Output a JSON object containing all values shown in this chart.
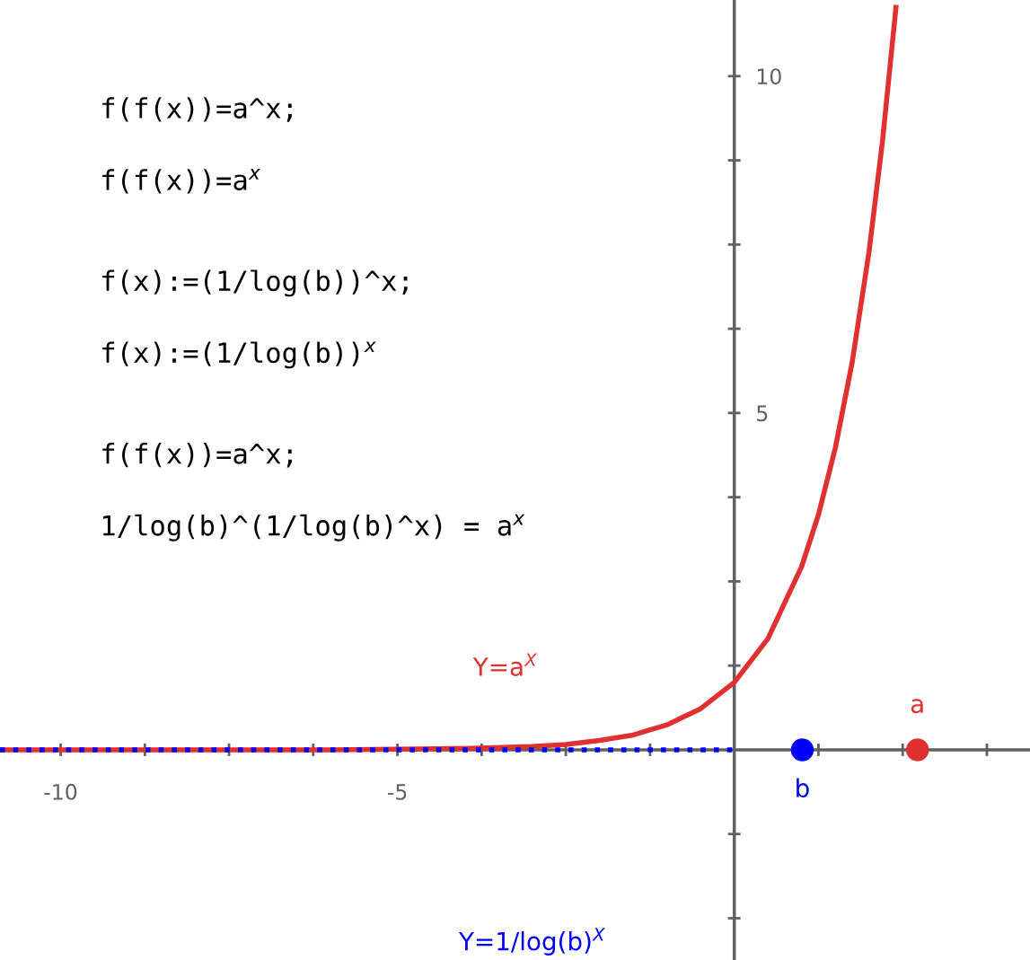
{
  "chart_data": {
    "type": "line",
    "xlim": [
      -10.9,
      4.39
    ],
    "ylim": [
      -3.12,
      11.13
    ],
    "xticks": [
      -10,
      {
        "value": -8.75,
        "label": null
      },
      {
        "value": -7.5,
        "label": null
      },
      {
        "value": -6.25,
        "label": null
      },
      -5,
      {
        "value": -3.75,
        "label": null
      },
      {
        "value": -2.5,
        "label": null
      },
      {
        "value": -1.25,
        "label": null
      },
      {
        "value": 1.25,
        "label": null
      },
      {
        "value": 2.5,
        "label": null
      },
      {
        "value": 3.75,
        "label": null
      }
    ],
    "yticks": [
      {
        "value": -2.5,
        "label": null
      },
      {
        "value": -1.25,
        "label": null
      },
      {
        "value": 1.25,
        "label": null
      },
      {
        "value": 2.5,
        "label": null
      },
      {
        "value": 3.75,
        "label": null
      },
      5,
      {
        "value": 6.25,
        "label": null
      },
      {
        "value": 7.5,
        "label": null
      },
      {
        "value": 8.75,
        "label": null
      },
      10
    ],
    "grid": false,
    "legend": false,
    "series": [
      {
        "name": "Y=a$^{X}$",
        "color": "#e03030",
        "line_style": "solid",
        "x": [
          -10.9,
          -8,
          -6,
          -5,
          -4,
          -3,
          -2.5,
          -2,
          -1.5,
          -1,
          -0.5,
          0,
          0.5,
          1,
          1.25,
          1.5,
          1.75,
          2,
          2.2,
          2.4
        ],
        "values": [
          0,
          0,
          0,
          0.01,
          0.02,
          0.05,
          0.08,
          0.14,
          0.22,
          0.37,
          0.61,
          1.0,
          1.65,
          2.72,
          3.49,
          4.48,
          5.75,
          7.39,
          9.03,
          11.02
        ]
      },
      {
        "color": "#0000ff",
        "line_style": "dotted",
        "x": [
          -10.9,
          -5,
          0
        ],
        "values": [
          0,
          0,
          0
        ]
      },
      {
        "type": "scatter",
        "name": "b",
        "color": "#0000ff",
        "marker": "circle",
        "x": [
          1.01
        ],
        "values": [
          0
        ]
      },
      {
        "type": "scatter",
        "name": "a",
        "color": "#e03030",
        "marker": "circle",
        "x": [
          2.72
        ],
        "values": [
          0
        ]
      }
    ],
    "annotations": [
      "f(f(x))=a^x;",
      "f(f(x))=a$^{x}$",
      "f(x):=(1/log(b))^x;",
      "f(x):=(1/log(b))$^{x}$",
      "f(f(x))=a^x;",
      "1/log(b)^(1/log(b)^x) = a$^{x}$",
      "Y=1/log(b)$^{X}$"
    ]
  }
}
